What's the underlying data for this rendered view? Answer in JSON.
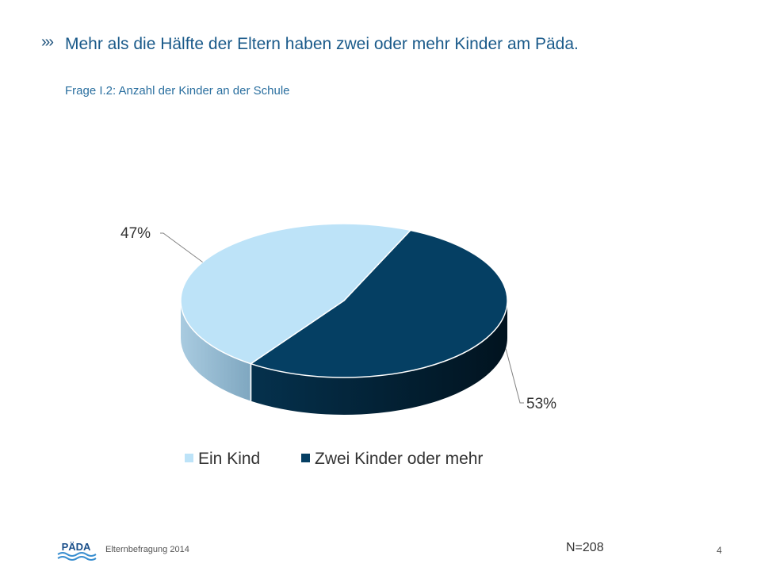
{
  "header": {
    "chevrons": "›››",
    "title": "Mehr als die Hälfte der Eltern haben zwei oder mehr Kinder am Päda.",
    "subtitle": "Frage I.2: Anzahl der Kinder an der Schule"
  },
  "chart_data": {
    "type": "pie",
    "style": "3d",
    "categories": [
      "Ein Kind",
      "Zwei Kinder oder mehr"
    ],
    "values": [
      47,
      53
    ],
    "data_labels": [
      "47%",
      "53%"
    ],
    "colors": [
      "#bde3f8",
      "#053f63"
    ],
    "legend_position": "bottom"
  },
  "footer": {
    "logo_text": "PÄDA",
    "survey": "Elternbefragung 2014",
    "sample_size": "N=208",
    "page": "4"
  }
}
